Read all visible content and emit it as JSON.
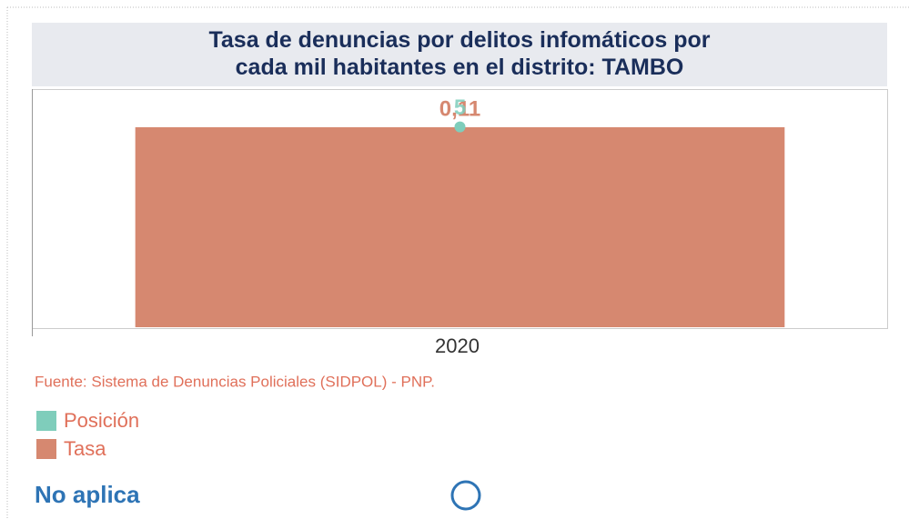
{
  "chart_data": {
    "type": "bar",
    "title": "Tasa de denuncias por delitos infomáticos por cada mil habitantes en el distrito: TAMBO",
    "categories": [
      "2020"
    ],
    "series": [
      {
        "name": "Tasa",
        "color": "#d68870",
        "values": [
          0.11
        ],
        "value_labels": [
          "0,11"
        ]
      },
      {
        "name": "Posición",
        "color": "#7fcdbb",
        "values": [
          5
        ],
        "axis": "y2"
      }
    ],
    "ylim": [
      0,
      0.13
    ],
    "y2lim": [
      0,
      5.9
    ],
    "source": "Fuente: Sistema de Denuncias Policiales (SIDPOL) - PNP.",
    "note": "No aplica"
  }
}
